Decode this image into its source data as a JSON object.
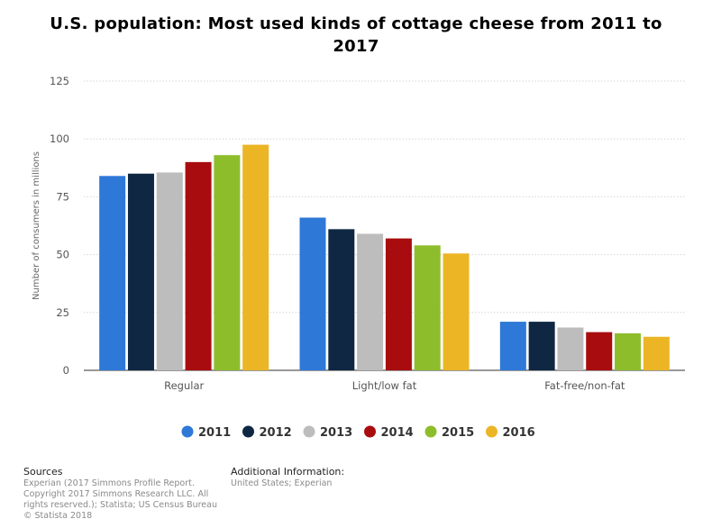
{
  "chart_data": {
    "type": "bar",
    "title": "U.S. population: Most used kinds of cottage cheese from 2011 to 2017",
    "ylabel": "Number of consumers in millions",
    "xlabel": "",
    "ylim": [
      0,
      125
    ],
    "yticks": [
      0,
      25,
      50,
      75,
      100,
      125
    ],
    "grid": true,
    "legend_position": "bottom",
    "categories": [
      "Regular",
      "Light/low fat",
      "Fat-free/non-fat"
    ],
    "series": [
      {
        "name": "2011",
        "color": "#2e78d8",
        "values": [
          84,
          66,
          21
        ]
      },
      {
        "name": "2012",
        "color": "#0f2742",
        "values": [
          85,
          61,
          21
        ]
      },
      {
        "name": "2013",
        "color": "#bdbdbd",
        "values": [
          85.5,
          59,
          18.5
        ]
      },
      {
        "name": "2014",
        "color": "#a80c0f",
        "values": [
          90,
          57,
          16.5
        ]
      },
      {
        "name": "2015",
        "color": "#8ebd2c",
        "values": [
          93,
          54,
          16
        ]
      },
      {
        "name": "2016",
        "color": "#ebb526",
        "values": [
          97.5,
          50.5,
          14.5
        ]
      }
    ]
  },
  "footer": {
    "sources_label": "Sources",
    "sources_text": "Experian (2017 Simmons Profile Report. Copyright 2017 Simmons Research LLC. All rights reserved.); Statista; US Census Bureau",
    "copyright": "© Statista 2018",
    "additional_label": "Additional Information:",
    "additional_text": "United States; Experian"
  }
}
